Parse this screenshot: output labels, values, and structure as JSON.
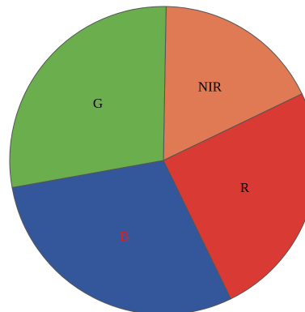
{
  "chart_data": {
    "type": "pie",
    "start_angle_deg": 1,
    "direction": "clockwise",
    "slices": [
      {
        "label": "NIR",
        "value": 17.6,
        "color": "#E07A55",
        "label_color": "#000000"
      },
      {
        "label": "R",
        "value": 24.9,
        "color": "#D93A34",
        "label_color": "#000000"
      },
      {
        "label": "B",
        "value": 29.4,
        "color": "#34569A",
        "label_color": "#E0201E"
      },
      {
        "label": "G",
        "value": 28.1,
        "color": "#6AAE4D",
        "label_color": "#000000"
      }
    ],
    "stroke_color": "#555555"
  }
}
